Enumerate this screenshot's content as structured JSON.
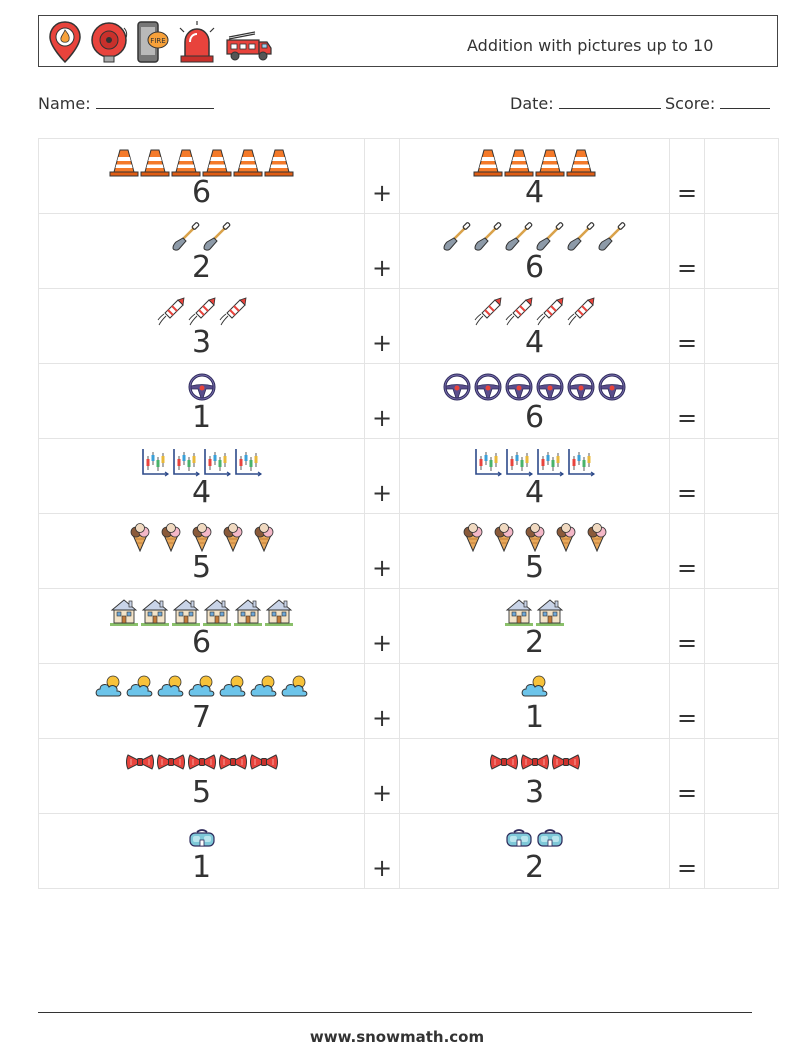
{
  "header": {
    "title": "Addition with pictures up to 10",
    "icons": [
      "location-fire-pin-icon",
      "fire-alarm-bell-icon",
      "fire-phone-icon",
      "siren-icon",
      "fire-truck-icon"
    ],
    "phone_label": "FIRE"
  },
  "form": {
    "name_label": "Name:",
    "date_label": "Date:",
    "score_label": "Score:"
  },
  "operators": {
    "plus": "+",
    "equals": "="
  },
  "problems": [
    {
      "a": 6,
      "b": 4,
      "icon": "traffic-cone-icon"
    },
    {
      "a": 2,
      "b": 6,
      "icon": "shovel-icon"
    },
    {
      "a": 3,
      "b": 4,
      "icon": "firework-rocket-icon"
    },
    {
      "a": 1,
      "b": 6,
      "icon": "steering-wheel-icon"
    },
    {
      "a": 4,
      "b": 4,
      "icon": "candlestick-chart-icon"
    },
    {
      "a": 5,
      "b": 5,
      "icon": "ice-cream-cone-icon"
    },
    {
      "a": 6,
      "b": 2,
      "icon": "house-icon"
    },
    {
      "a": 7,
      "b": 1,
      "icon": "cloud-sun-icon"
    },
    {
      "a": 5,
      "b": 3,
      "icon": "bow-tie-icon"
    },
    {
      "a": 1,
      "b": 2,
      "icon": "vr-goggles-icon"
    }
  ],
  "colors": {
    "cone": "#f47a2a",
    "cone_stripe": "#ffffff",
    "line": "#e4e4e4",
    "text": "#333333"
  },
  "footer": {
    "url": "www.snowmath.com"
  }
}
